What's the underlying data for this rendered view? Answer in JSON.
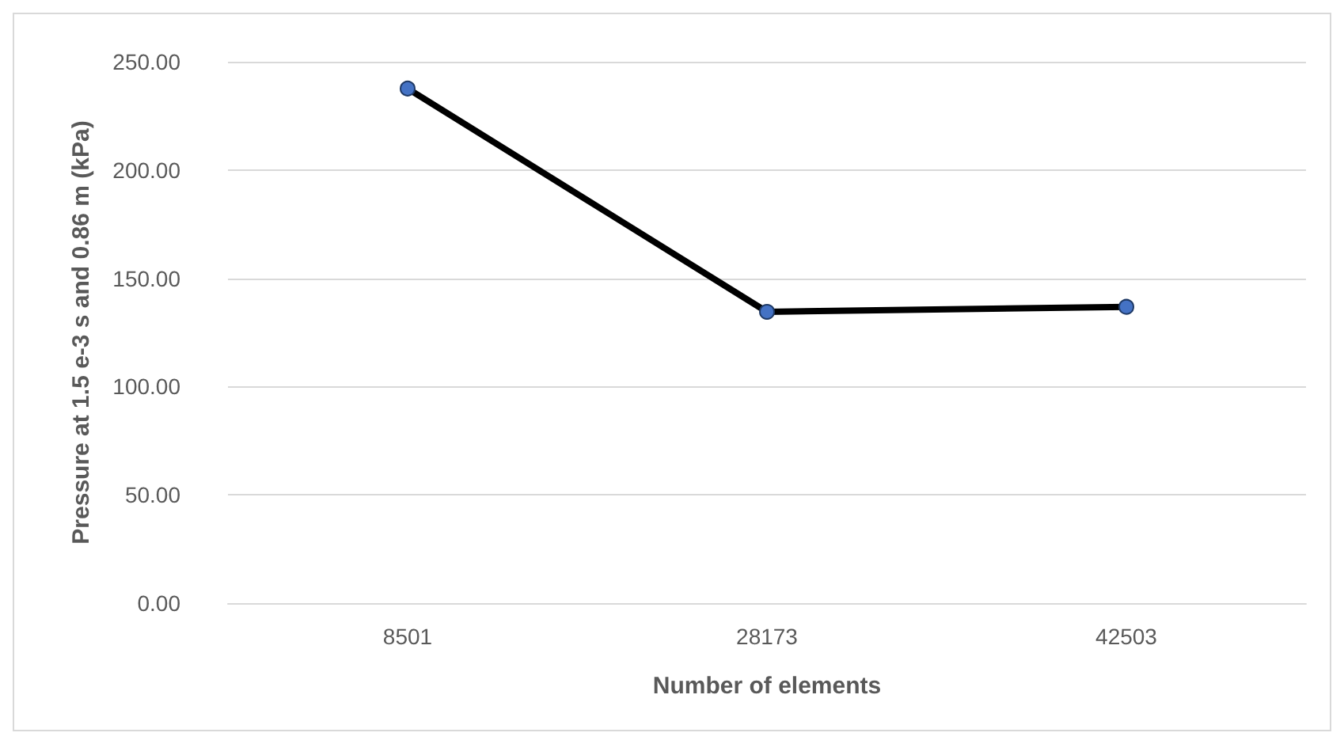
{
  "chart_data": {
    "type": "line",
    "xlabel": "Number of elements",
    "ylabel": "Pressure at 1.5 e-3 s and 0.86 m (kPa)",
    "categories": [
      "8501",
      "28173",
      "42503"
    ],
    "series": [
      {
        "color": "#000000",
        "colors": [
          "#4472c4",
          "#4472c4",
          "#4472c4"
        ],
        "values": [
          237.6,
          134.5,
          136.8
        ]
      }
    ],
    "ylim": [
      0,
      250
    ],
    "yticks": [
      {
        "value": 0,
        "label": "0.00"
      },
      {
        "value": 50,
        "label": "50.00"
      },
      {
        "value": 100,
        "label": "100.00"
      },
      {
        "value": 150,
        "label": "150.00"
      },
      {
        "value": 200,
        "label": "200.00"
      },
      {
        "value": 250,
        "label": "250.00"
      }
    ],
    "grid": "y",
    "marker": "circle",
    "line_style": "solid"
  }
}
